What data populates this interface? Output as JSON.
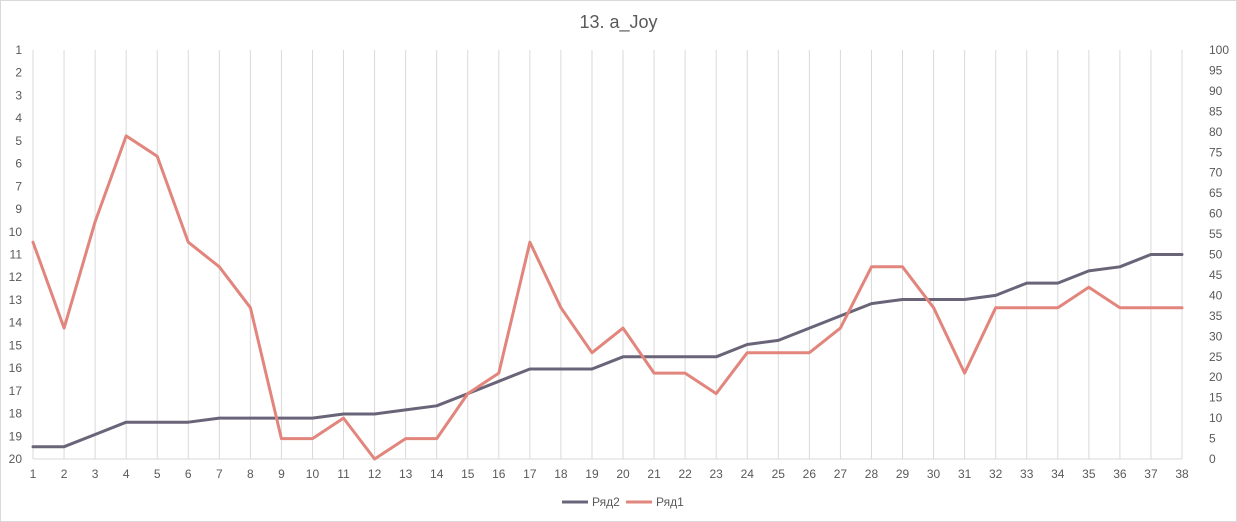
{
  "chart_data": {
    "type": "line",
    "title": "13. a_Joy",
    "x": [
      1,
      2,
      3,
      4,
      5,
      6,
      7,
      8,
      9,
      10,
      11,
      12,
      13,
      14,
      15,
      16,
      17,
      18,
      19,
      20,
      21,
      22,
      23,
      24,
      25,
      26,
      27,
      28,
      29,
      30,
      31,
      32,
      33,
      34,
      35,
      36,
      37,
      38
    ],
    "x_tick_labels": [
      "1",
      "2",
      "3",
      "4",
      "5",
      "6",
      "7",
      "8",
      "9",
      "10",
      "11",
      "12",
      "13",
      "14",
      "15",
      "16",
      "17",
      "18",
      "19",
      "20",
      "21",
      "22",
      "23",
      "24",
      "25",
      "26",
      "27",
      "28",
      "29",
      "30",
      "31",
      "32",
      "33",
      "34",
      "35",
      "36",
      "37",
      "38"
    ],
    "y_left_tick_labels": [
      "1",
      "2",
      "3",
      "4",
      "5",
      "6",
      "7",
      "9",
      "10",
      "11",
      "12",
      "13",
      "14",
      "15",
      "16",
      "17",
      "18",
      "19",
      "20"
    ],
    "y_right_ticks": [
      0,
      5,
      10,
      15,
      20,
      25,
      30,
      35,
      40,
      45,
      50,
      55,
      60,
      65,
      70,
      75,
      80,
      85,
      90,
      95,
      100
    ],
    "y_right_range": [
      0,
      100
    ],
    "grid": "vertical",
    "legend_position": "bottom",
    "series": [
      {
        "name": "Ряд2",
        "color": "#6a6478",
        "axis": "right",
        "values": [
          3,
          3,
          6,
          9,
          9,
          9,
          10,
          10,
          10,
          10,
          11,
          11,
          12,
          13,
          16,
          19,
          22,
          22,
          22,
          25,
          25,
          25,
          25,
          28,
          29,
          32,
          35,
          38,
          39,
          39,
          39,
          40,
          43,
          43,
          46,
          47,
          50,
          50
        ]
      },
      {
        "name": "Ряд1",
        "color": "#e2857d",
        "axis": "right",
        "values": [
          53,
          32,
          58,
          79,
          74,
          53,
          47,
          37,
          5,
          5,
          10,
          0,
          5,
          5,
          16,
          21,
          53,
          37,
          26,
          32,
          21,
          21,
          16,
          26,
          26,
          26,
          32,
          47,
          47,
          37,
          21,
          37,
          37,
          37,
          42,
          37,
          37,
          37
        ]
      }
    ]
  }
}
